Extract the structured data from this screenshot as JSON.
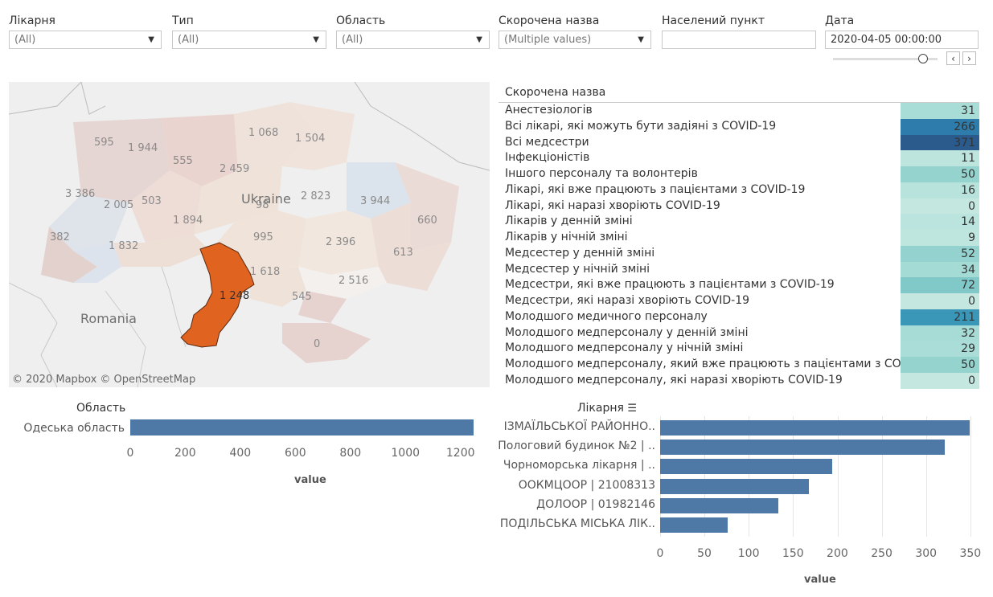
{
  "filters": [
    {
      "label": "Лікарня",
      "value": "(All)"
    },
    {
      "label": "Тип",
      "value": "(All)"
    },
    {
      "label": "Область",
      "value": "(All)"
    },
    {
      "label": "Скорочена назва",
      "value": "(Multiple values)"
    },
    {
      "label": "Населений пункт",
      "value": ""
    },
    {
      "label": "Дата",
      "value": "2020-04-05 00:00:00"
    }
  ],
  "date_nav": {
    "prev": "‹",
    "next": "›"
  },
  "map": {
    "country_ua": "Ukraine",
    "country_ro": "Romania",
    "copyright": "© 2020 Mapbox © OpenStreetMap",
    "labels": [
      "595",
      "1 944",
      "1 068",
      "1 504",
      "555",
      "2 459",
      "3 386",
      "2 005",
      "503",
      "2 823",
      "3 944",
      "98",
      "1 894",
      "660",
      "382",
      "995",
      "2 396",
      "1 832",
      "613",
      "1 618",
      "2 516",
      "1 248",
      "545",
      "0"
    ],
    "highlight_color": "#e06320"
  },
  "table": {
    "header": "Скорочена назва",
    "rows": [
      {
        "name": "Анестезіологів",
        "value": "31",
        "color": "#a8dcd6"
      },
      {
        "name": "Всі лікарі, які можуть бути задіяні з COVID-19",
        "value": "266",
        "color": "#2e7cab"
      },
      {
        "name": "Всі медсестри",
        "value": "371",
        "color": "#2b5a8c"
      },
      {
        "name": "Інфекціоністів",
        "value": "11",
        "color": "#bde5de"
      },
      {
        "name": "Іншого персоналу та волонтерів",
        "value": "50",
        "color": "#95d3cf"
      },
      {
        "name": "Лікарі, які вже працюють з пацієнтами з COVID-19",
        "value": "16",
        "color": "#b8e3dc"
      },
      {
        "name": "Лікарі, які наразі хворіють COVID-19",
        "value": "0",
        "color": "#c4e8e0"
      },
      {
        "name": "Лікарів у денній зміні",
        "value": "14",
        "color": "#bae4dd"
      },
      {
        "name": "Лікарів у нічній зміні",
        "value": "9",
        "color": "#bee5de"
      },
      {
        "name": "Медсестер у денній зміні",
        "value": "52",
        "color": "#93d2ce"
      },
      {
        "name": "Медсестер у нічній зміні",
        "value": "34",
        "color": "#a5dbd5"
      },
      {
        "name": "Медсестри, які вже працюють з пацієнтами з COVID-19",
        "value": "72",
        "color": "#81c9c9"
      },
      {
        "name": "Медсестри, які наразі хворіють COVID-19",
        "value": "0",
        "color": "#c4e8e0"
      },
      {
        "name": "Молодшого медичного персоналу",
        "value": "211",
        "color": "#3a97b8"
      },
      {
        "name": "Молодшого медперсоналу у денній зміні",
        "value": "32",
        "color": "#a7dbd5"
      },
      {
        "name": "Молодшого медперсоналу у нічній зміні",
        "value": "29",
        "color": "#aaddd7"
      },
      {
        "name": "Молодшого медперсоналу, який вже працюють з пацієнтами з CO..",
        "value": "50",
        "color": "#95d3cf"
      },
      {
        "name": "Молодшого медперсоналу, які наразі хворіють COVID-19",
        "value": "0",
        "color": "#c4e8e0"
      }
    ]
  },
  "region_chart": {
    "header": "Область",
    "xlabel": "value"
  },
  "hospital_chart": {
    "header": "Лікарня",
    "sort_icon": "sort-descending-icon",
    "xlabel": "value"
  },
  "chart_data": [
    {
      "type": "bar",
      "orientation": "horizontal",
      "title": "Область",
      "categories": [
        "Одеська область"
      ],
      "values": [
        1248
      ],
      "xlabel": "value",
      "xlim": [
        0,
        1250
      ],
      "ticks": [
        "0",
        "200",
        "400",
        "600",
        "800",
        "1000",
        "1200"
      ],
      "color": "#4e79a7"
    },
    {
      "type": "bar",
      "orientation": "horizontal",
      "title": "Лікарня",
      "categories": [
        "ІЗМАЇЛЬСЬКОЇ РАЙОННО..",
        "Пологовий будинок №2 | ..",
        "Чорноморська лікарня | ..",
        "ООКМЦООР | 21008313",
        "ДОЛООР | 01982146",
        "ПОДІЛЬСЬКА МІСЬКА ЛІК.."
      ],
      "values": [
        349,
        321,
        194,
        168,
        133,
        76
      ],
      "xlabel": "value",
      "xlim": [
        0,
        360
      ],
      "ticks": [
        "0",
        "50",
        "100",
        "150",
        "200",
        "250",
        "300",
        "350"
      ],
      "color": "#4e79a7"
    }
  ]
}
